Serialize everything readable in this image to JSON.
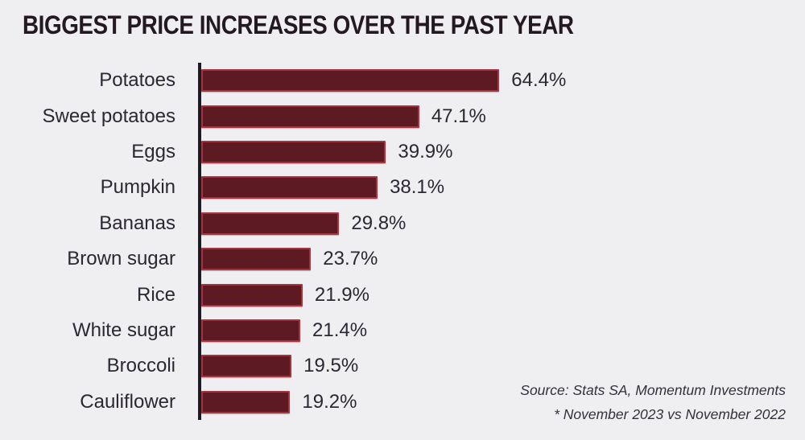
{
  "title": "BIGGEST PRICE INCREASES OVER THE PAST YEAR",
  "chart_data": {
    "type": "bar",
    "orientation": "horizontal",
    "title": "BIGGEST PRICE INCREASES OVER THE PAST YEAR",
    "categories": [
      "Potatoes",
      "Sweet potatoes",
      "Eggs",
      "Pumpkin",
      "Bananas",
      "Brown sugar",
      "Rice",
      "White sugar",
      "Broccoli",
      "Cauliflower"
    ],
    "values": [
      64.4,
      47.1,
      39.9,
      38.1,
      29.8,
      23.7,
      21.9,
      21.4,
      19.5,
      19.2
    ],
    "value_labels": [
      "64.4%",
      "47.1%",
      "39.9%",
      "38.1%",
      "29.8%",
      "23.7%",
      "21.9%",
      "21.4%",
      "19.5%",
      "19.2%"
    ],
    "xlabel": "",
    "ylabel": "",
    "xlim": [
      0,
      70
    ],
    "grid": false,
    "legend": false,
    "data_labels": "outside-end"
  },
  "source": {
    "line1": "Source: Stats SA, Momentum Investments",
    "line2": "* November 2023 vs November 2022"
  },
  "colors": {
    "background": "#efeef0",
    "bar_fill": "#5e1a23",
    "bar_border": "#a63440",
    "axis": "#1b1b22",
    "title_text": "#241822",
    "label_text": "#2b2733",
    "source_text": "#34303d"
  }
}
